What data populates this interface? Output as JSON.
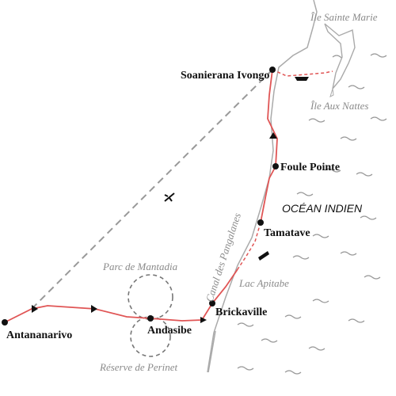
{
  "places": [
    {
      "label": "Antananarivo"
    },
    {
      "label": "Andasibe"
    },
    {
      "label": "Brickaville"
    },
    {
      "label": "Tamatave"
    },
    {
      "label": "Foule Pointe"
    },
    {
      "label": "Soanierana Ivongo"
    }
  ],
  "areas": [
    {
      "label": "Parc de Mantadia"
    },
    {
      "label": "Réserve de Perinet"
    },
    {
      "label": "Lac Apitabe"
    },
    {
      "label": "Canal des Pangalanes"
    },
    {
      "label": "Île Sainte Marie"
    },
    {
      "label": "Île Aux Nattes"
    }
  ],
  "ocean": {
    "label": "OCÉAN INDIEN"
  }
}
